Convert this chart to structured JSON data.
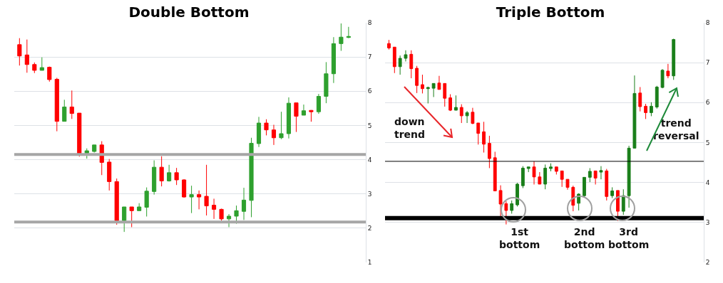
{
  "chart_data": [
    {
      "type": "candlestick",
      "title": "Double Bottom",
      "categories": [
        null,
        null,
        null,
        null,
        null,
        null,
        null,
        null,
        null,
        null,
        null,
        null,
        null,
        null,
        null,
        null,
        null,
        null,
        null,
        null,
        null,
        null,
        null,
        null,
        null,
        null,
        null,
        null,
        null,
        null,
        null,
        null,
        null,
        null,
        null,
        null,
        null,
        null,
        null,
        null,
        null,
        null,
        null,
        null,
        null
      ],
      "ohlc": [
        [
          7.36,
          7.55,
          6.75,
          7.03
        ],
        [
          7.06,
          7.51,
          6.54,
          6.78
        ],
        [
          6.78,
          6.84,
          6.53,
          6.61
        ],
        [
          6.61,
          6.99,
          6.61,
          6.69
        ],
        [
          6.7,
          6.72,
          6.28,
          6.34
        ],
        [
          6.35,
          6.39,
          4.83,
          5.12
        ],
        [
          5.12,
          5.75,
          5.12,
          5.54
        ],
        [
          5.54,
          6.02,
          5.19,
          5.35
        ],
        [
          5.36,
          5.36,
          4.09,
          4.17
        ],
        [
          4.19,
          4.33,
          4.03,
          4.26
        ],
        [
          4.24,
          4.43,
          4.21,
          4.43
        ],
        [
          4.43,
          4.54,
          3.55,
          3.92
        ],
        [
          3.93,
          4.02,
          3.1,
          3.36
        ],
        [
          3.36,
          3.45,
          2.1,
          2.22
        ],
        [
          2.22,
          2.62,
          1.89,
          2.62
        ],
        [
          2.62,
          2.62,
          2.03,
          2.51
        ],
        [
          2.51,
          2.73,
          2.51,
          2.62
        ],
        [
          2.61,
          3.19,
          2.34,
          3.08
        ],
        [
          3.07,
          3.98,
          2.98,
          3.78
        ],
        [
          3.78,
          4.1,
          3.22,
          3.38
        ],
        [
          3.38,
          3.85,
          3.36,
          3.62
        ],
        [
          3.62,
          3.76,
          3.26,
          3.41
        ],
        [
          3.41,
          3.43,
          2.89,
          2.91
        ],
        [
          2.91,
          3.24,
          2.44,
          2.98
        ],
        [
          2.98,
          3.1,
          2.55,
          2.91
        ],
        [
          2.93,
          3.85,
          2.37,
          2.65
        ],
        [
          2.67,
          2.86,
          2.27,
          2.55
        ],
        [
          2.55,
          2.57,
          2.22,
          2.27
        ],
        [
          2.27,
          2.41,
          2.03,
          2.35
        ],
        [
          2.35,
          2.66,
          2.13,
          2.51
        ],
        [
          2.49,
          3.18,
          2.24,
          2.82
        ],
        [
          2.81,
          4.64,
          2.32,
          4.48
        ],
        [
          4.47,
          5.25,
          4.37,
          5.07
        ],
        [
          5.07,
          5.18,
          4.71,
          4.87
        ],
        [
          4.87,
          5.02,
          4.43,
          4.64
        ],
        [
          4.64,
          5.4,
          4.6,
          4.76
        ],
        [
          4.76,
          5.82,
          4.62,
          5.65
        ],
        [
          5.66,
          5.66,
          4.81,
          5.27
        ],
        [
          5.3,
          5.61,
          5.3,
          5.43
        ],
        [
          5.44,
          5.45,
          5.11,
          5.4
        ],
        [
          5.4,
          5.92,
          5.34,
          5.85
        ],
        [
          5.85,
          6.85,
          5.65,
          6.51
        ],
        [
          6.51,
          7.58,
          6.24,
          7.39
        ],
        [
          7.39,
          7.98,
          7.18,
          7.58
        ],
        [
          7.57,
          7.88,
          7.55,
          7.6
        ]
      ],
      "colors": [
        "#ff0000",
        "#ff0000",
        "#ff0000",
        "#2ea02e",
        "#ff0000",
        "#ff0000",
        "#2ea02e",
        "#ff0000",
        "#ff0000",
        "#2ea02e",
        "#2ea02e",
        "#ff0000",
        "#ff0000",
        "#ff0000",
        "#2ea02e",
        "#ff0000",
        "#2ea02e",
        "#2ea02e",
        "#2ea02e",
        "#ff0000",
        "#2ea02e",
        "#ff0000",
        "#ff0000",
        "#2ea02e",
        "#ff0000",
        "#ff0000",
        "#ff0000",
        "#ff0000",
        "#2ea02e",
        "#2ea02e",
        "#2ea02e",
        "#2ea02e",
        "#2ea02e",
        "#ff0000",
        "#ff0000",
        "#2ea02e",
        "#2ea02e",
        "#ff0000",
        "#2ea02e",
        "#ff0000",
        "#2ea02e",
        "#2ea02e",
        "#2ea02e",
        "#2ea02e",
        "#2ea02e"
      ],
      "ylim": [
        1,
        8
      ],
      "yticks": [
        1,
        2,
        3,
        4,
        5,
        6,
        7,
        8
      ],
      "grid": "y",
      "ref_lines": [
        {
          "axis": "y",
          "value": 4.15,
          "color": "#a6a6a6"
        },
        {
          "axis": "y",
          "value": 2.18,
          "color": "#a6a6a6"
        }
      ]
    },
    {
      "type": "candlestick",
      "title": "Triple Bottom",
      "categories": [
        null,
        null,
        null,
        null,
        null,
        null,
        null,
        null,
        null,
        null,
        null,
        null,
        null,
        null,
        null,
        null,
        null,
        null,
        null,
        null,
        null,
        null,
        null,
        null,
        null,
        null,
        null,
        null,
        null,
        null,
        null,
        null,
        null,
        null,
        null,
        null,
        null,
        null,
        null,
        null,
        null,
        null,
        null,
        null,
        null,
        null,
        null,
        null,
        null,
        null,
        null,
        null
      ],
      "ohlc": [
        [
          7.48,
          7.57,
          7.33,
          7.37
        ],
        [
          7.39,
          7.39,
          6.74,
          6.9
        ],
        [
          6.9,
          7.18,
          6.7,
          7.11
        ],
        [
          7.11,
          7.31,
          7.03,
          7.2
        ],
        [
          7.21,
          7.31,
          6.61,
          6.85
        ],
        [
          6.86,
          6.92,
          6.24,
          6.43
        ],
        [
          6.45,
          6.7,
          6.23,
          6.35
        ],
        [
          6.35,
          6.4,
          5.98,
          6.38
        ],
        [
          6.36,
          6.48,
          6.14,
          6.48
        ],
        [
          6.49,
          6.67,
          6.33,
          6.33
        ],
        [
          6.48,
          6.48,
          5.9,
          6.11
        ],
        [
          6.12,
          6.21,
          5.79,
          5.81
        ],
        [
          5.81,
          6.18,
          5.81,
          5.88
        ],
        [
          5.88,
          5.96,
          5.49,
          5.67
        ],
        [
          5.67,
          5.79,
          5.49,
          5.75
        ],
        [
          5.76,
          5.87,
          5.46,
          5.48
        ],
        [
          5.49,
          5.49,
          4.95,
          5.23
        ],
        [
          5.27,
          5.52,
          4.75,
          4.96
        ],
        [
          4.98,
          5.17,
          4.36,
          4.6
        ],
        [
          4.62,
          4.77,
          3.79,
          3.79
        ],
        [
          3.8,
          3.93,
          3.13,
          3.46
        ],
        [
          3.47,
          3.53,
          2.95,
          3.3
        ],
        [
          3.3,
          3.55,
          3.22,
          3.47
        ],
        [
          3.44,
          3.99,
          3.4,
          3.96
        ],
        [
          3.92,
          4.41,
          3.86,
          4.36
        ],
        [
          4.35,
          4.39,
          4.26,
          4.39
        ],
        [
          4.39,
          4.53,
          3.95,
          4.14
        ],
        [
          4.14,
          4.26,
          3.96,
          3.96
        ],
        [
          3.96,
          4.45,
          3.83,
          4.36
        ],
        [
          4.35,
          4.48,
          4.28,
          4.39
        ],
        [
          4.39,
          4.39,
          4.2,
          4.28
        ],
        [
          4.29,
          4.29,
          3.89,
          4.08
        ],
        [
          4.08,
          4.08,
          3.82,
          3.88
        ],
        [
          3.88,
          3.92,
          3.28,
          3.43
        ],
        [
          3.48,
          3.73,
          3.3,
          3.71
        ],
        [
          3.67,
          4.13,
          3.63,
          4.13
        ],
        [
          4.13,
          4.36,
          4.01,
          4.28
        ],
        [
          4.29,
          4.29,
          3.95,
          4.11
        ],
        [
          4.26,
          4.41,
          4.08,
          4.3
        ],
        [
          4.29,
          4.34,
          3.55,
          3.65
        ],
        [
          3.67,
          3.88,
          3.61,
          3.79
        ],
        [
          3.8,
          3.8,
          3.04,
          3.28
        ],
        [
          3.28,
          3.83,
          3.19,
          3.67
        ],
        [
          3.67,
          4.92,
          3.37,
          4.86
        ],
        [
          4.86,
          6.68,
          4.86,
          6.23
        ],
        [
          6.24,
          6.39,
          5.78,
          5.9
        ],
        [
          5.91,
          5.97,
          5.59,
          5.75
        ],
        [
          5.75,
          6.01,
          5.66,
          5.91
        ],
        [
          5.89,
          6.42,
          5.85,
          6.39
        ],
        [
          6.38,
          6.84,
          6.36,
          6.81
        ],
        [
          6.79,
          6.97,
          6.61,
          6.67
        ],
        [
          6.67,
          7.6,
          6.57,
          7.58
        ]
      ],
      "colors": [
        "#ff0000",
        "#ff0000",
        "#1a7f1a",
        "#1a7f1a",
        "#ff0000",
        "#ff0000",
        "#ff0000",
        "#1a7f1a",
        "#1a7f1a",
        "#ff0000",
        "#ff0000",
        "#ff0000",
        "#1a7f1a",
        "#ff0000",
        "#1a7f1a",
        "#ff0000",
        "#ff0000",
        "#ff0000",
        "#ff0000",
        "#ff0000",
        "#ff0000",
        "#ff0000",
        "#1a7f1a",
        "#1a7f1a",
        "#1a7f1a",
        "#1a7f1a",
        "#ff0000",
        "#ff0000",
        "#1a7f1a",
        "#1a7f1a",
        "#ff0000",
        "#ff0000",
        "#ff0000",
        "#ff0000",
        "#1a7f1a",
        "#1a7f1a",
        "#1a7f1a",
        "#ff0000",
        "#1a7f1a",
        "#ff0000",
        "#1a7f1a",
        "#ff0000",
        "#1a7f1a",
        "#1a7f1a",
        "#1a7f1a",
        "#ff0000",
        "#ff0000",
        "#1a7f1a",
        "#1a7f1a",
        "#1a7f1a",
        "#ff0000",
        "#1a7f1a"
      ],
      "ylim": [
        2,
        8
      ],
      "yticks": [
        2,
        3,
        4,
        5,
        6,
        7,
        8
      ],
      "grid": "y",
      "ref_lines": [
        {
          "axis": "y",
          "value": 4.53,
          "color": "#000000"
        },
        {
          "axis": "y",
          "value": 3.11,
          "color": "#000000"
        }
      ],
      "annotations": [
        "down trend",
        "1st bottom",
        "2nd bottom",
        "3rd bottom",
        "trend reversal"
      ]
    }
  ]
}
